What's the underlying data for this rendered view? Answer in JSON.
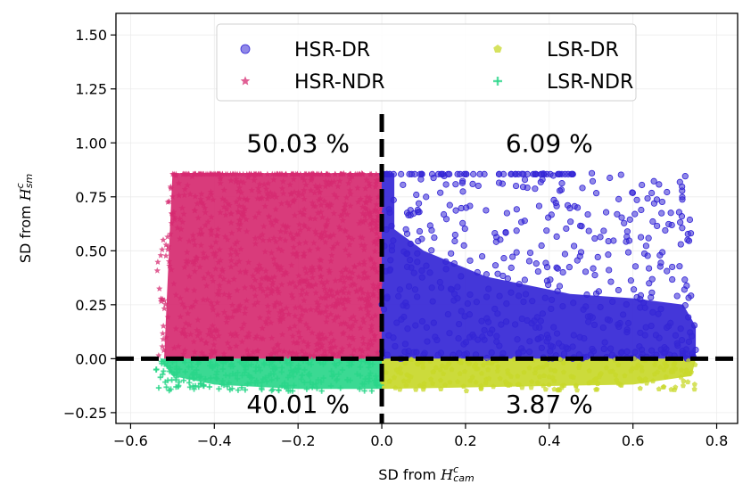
{
  "chart_data": {
    "type": "scatter",
    "title": "",
    "xlabel": {
      "prefix": "SD from ",
      "symbol": "H",
      "superscript": "c",
      "subscript": "cam"
    },
    "ylabel": {
      "prefix": "SD from ",
      "symbol": "H",
      "superscript": "c",
      "subscript": "sm"
    },
    "xlim": [
      -0.635,
      0.85
    ],
    "ylim": [
      -0.3,
      1.6
    ],
    "x_ticks": [
      -0.6,
      -0.4,
      -0.2,
      0.0,
      0.2,
      0.4,
      0.6,
      0.8
    ],
    "x_tick_labels": [
      "−0.6",
      "−0.4",
      "−0.2",
      "0.0",
      "0.2",
      "0.4",
      "0.6",
      "0.8"
    ],
    "y_ticks": [
      -0.25,
      0.0,
      0.25,
      0.5,
      0.75,
      1.0,
      1.25,
      1.5
    ],
    "y_tick_labels": [
      "−0.25",
      "0.00",
      "0.25",
      "0.50",
      "0.75",
      "1.00",
      "1.25",
      "1.50"
    ],
    "grid": true,
    "legend_position": "top-center",
    "series": [
      {
        "name": "HSR-DR",
        "marker": "circle",
        "color": "#3426d6"
      },
      {
        "name": "HSR-NDR",
        "marker": "star",
        "color": "#d62a70"
      },
      {
        "name": "LSR-DR",
        "marker": "pentagon",
        "color": "#c8d82a"
      },
      {
        "name": "LSR-NDR",
        "marker": "plus",
        "color": "#2ad68a"
      }
    ],
    "regions": [
      {
        "series": "HSR-NDR",
        "x_range": [
          -0.54,
          0.0
        ],
        "y_range": [
          0.0,
          0.86
        ]
      },
      {
        "series": "HSR-DR",
        "x_range": [
          0.0,
          0.75
        ],
        "y_range": [
          0.0,
          0.86
        ]
      },
      {
        "series": "LSR-NDR",
        "x_range": [
          -0.54,
          0.0
        ],
        "y_range": [
          -0.15,
          0.0
        ]
      },
      {
        "series": "LSR-DR",
        "x_range": [
          0.0,
          0.75
        ],
        "y_range": [
          -0.15,
          0.0
        ]
      }
    ],
    "annotations": [
      {
        "text": "50.03 %",
        "x": -0.2,
        "y": 1.0
      },
      {
        "text": "6.09 %",
        "x": 0.4,
        "y": 1.0
      },
      {
        "text": "40.01 %",
        "x": -0.2,
        "y": -0.21
      },
      {
        "text": "3.87 %",
        "x": 0.4,
        "y": -0.21
      }
    ],
    "reference_lines": [
      {
        "orientation": "vertical",
        "x": 0.0,
        "style": "dashed",
        "color": "#000000"
      },
      {
        "orientation": "horizontal",
        "y": 0.0,
        "style": "dashed",
        "color": "#000000"
      }
    ]
  }
}
